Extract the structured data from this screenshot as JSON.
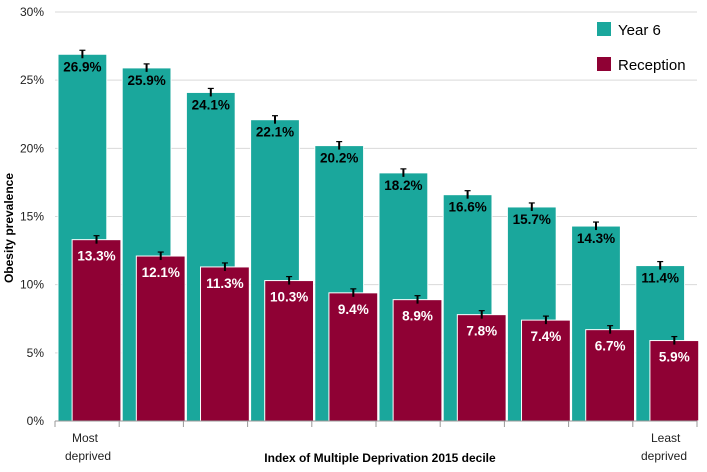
{
  "chart_data": {
    "type": "bar",
    "title": "",
    "xlabel": "Index of Multiple Deprivation 2015 decile",
    "ylabel": "Obesity prevalence",
    "ylim": [
      0,
      30
    ],
    "y_ticks": [
      "0%",
      "5%",
      "10%",
      "15%",
      "20%",
      "25%",
      "30%"
    ],
    "y_tick_values": [
      0,
      5,
      10,
      15,
      20,
      25,
      30
    ],
    "grid": true,
    "legend_position": "top-right",
    "categories": [
      "Most deprived",
      "",
      "",
      "",
      "",
      "",
      "",
      "",
      "",
      "Least deprived"
    ],
    "x_end_labels": {
      "first_line1": "Most",
      "first_line2": "deprived",
      "last_line1": "Least",
      "last_line2": "deprived"
    },
    "series": [
      {
        "name": "Year 6",
        "color": "#1aa79c",
        "values": [
          26.9,
          25.9,
          24.1,
          22.1,
          20.2,
          18.2,
          16.6,
          15.7,
          14.3,
          11.4
        ],
        "labels": [
          "26.9%",
          "25.9%",
          "24.1%",
          "22.1%",
          "20.2%",
          "18.2%",
          "16.6%",
          "15.7%",
          "14.3%",
          "11.4%"
        ],
        "label_color": "#000000"
      },
      {
        "name": "Reception",
        "color": "#8f0134",
        "values": [
          13.3,
          12.1,
          11.3,
          10.3,
          9.4,
          8.9,
          7.8,
          7.4,
          6.7,
          5.9
        ],
        "labels": [
          "13.3%",
          "12.1%",
          "11.3%",
          "10.3%",
          "9.4%",
          "8.9%",
          "7.8%",
          "7.4%",
          "6.7%",
          "5.9%"
        ],
        "label_color": "#ffffff"
      }
    ]
  }
}
